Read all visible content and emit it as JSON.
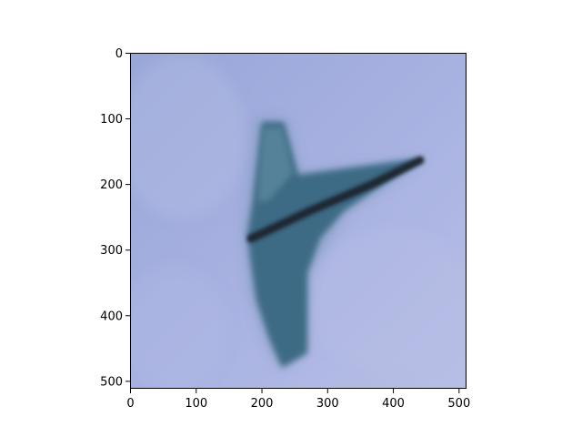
{
  "chart_data": {
    "type": "image",
    "image_size": [
      512,
      512
    ],
    "xlim": [
      0,
      512
    ],
    "ylim": [
      512,
      0
    ],
    "xticks": [
      0,
      100,
      200,
      300,
      400,
      500
    ],
    "yticks": [
      0,
      100,
      200,
      300,
      400,
      500
    ],
    "x_tick_labels": [
      "0",
      "100",
      "200",
      "300",
      "400",
      "500"
    ],
    "y_tick_labels": [
      "0",
      "100",
      "200",
      "300",
      "400",
      "500"
    ],
    "title": "",
    "xlabel": "",
    "ylabel": "",
    "grid": false,
    "colors": {
      "sky_light": "#b8bfe6",
      "sky_mid": "#a9b3e2",
      "sky_dark": "#98a6d8",
      "aircraft_dark": "#2f5a74",
      "aircraft_mid": "#3e6a84",
      "aircraft_light": "#5f8aa0",
      "wing_edge": "#1c2733",
      "axis": "#000000"
    }
  }
}
